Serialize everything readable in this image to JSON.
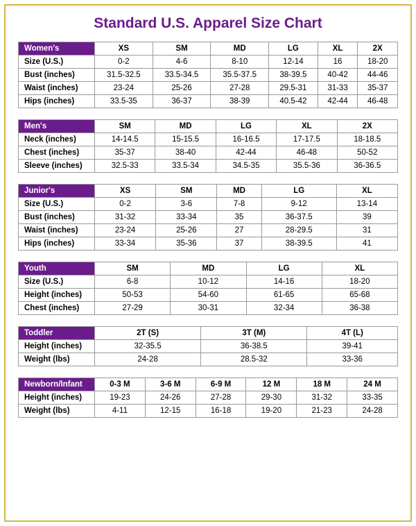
{
  "title": "Standard U.S. Apparel Size Chart",
  "colors": {
    "header_bg": "#6b1c8c",
    "header_text": "#ffffff",
    "border": "#999999",
    "frame": "#d4b740",
    "title": "#6b1c8c"
  },
  "tables": [
    {
      "category": "Women's",
      "sizes": [
        "XS",
        "SM",
        "MD",
        "LG",
        "XL",
        "2X"
      ],
      "rows": [
        {
          "label": "Size (U.S.)",
          "values": [
            "0-2",
            "4-6",
            "8-10",
            "12-14",
            "16",
            "18-20"
          ]
        },
        {
          "label": "Bust (inches)",
          "values": [
            "31.5-32.5",
            "33.5-34.5",
            "35.5-37.5",
            "38-39.5",
            "40-42",
            "44-46"
          ]
        },
        {
          "label": "Waist (inches)",
          "values": [
            "23-24",
            "25-26",
            "27-28",
            "29.5-31",
            "31-33",
            "35-37"
          ]
        },
        {
          "label": "Hips (inches)",
          "values": [
            "33.5-35",
            "36-37",
            "38-39",
            "40.5-42",
            "42-44",
            "46-48"
          ]
        }
      ]
    },
    {
      "category": "Men's",
      "sizes": [
        "SM",
        "MD",
        "LG",
        "XL",
        "2X"
      ],
      "rows": [
        {
          "label": "Neck (inches)",
          "values": [
            "14-14.5",
            "15-15.5",
            "16-16.5",
            "17-17.5",
            "18-18.5"
          ]
        },
        {
          "label": "Chest (inches)",
          "values": [
            "35-37",
            "38-40",
            "42-44",
            "46-48",
            "50-52"
          ]
        },
        {
          "label": "Sleeve (inches)",
          "values": [
            "32.5-33",
            "33.5-34",
            "34.5-35",
            "35.5-36",
            "36-36.5"
          ]
        }
      ]
    },
    {
      "category": "Junior's",
      "sizes": [
        "XS",
        "SM",
        "MD",
        "LG",
        "XL"
      ],
      "rows": [
        {
          "label": "Size (U.S.)",
          "values": [
            "0-2",
            "3-6",
            "7-8",
            "9-12",
            "13-14"
          ]
        },
        {
          "label": "Bust (inches)",
          "values": [
            "31-32",
            "33-34",
            "35",
            "36-37.5",
            "39"
          ]
        },
        {
          "label": "Waist (inches)",
          "values": [
            "23-24",
            "25-26",
            "27",
            "28-29.5",
            "31"
          ]
        },
        {
          "label": "Hips (inches)",
          "values": [
            "33-34",
            "35-36",
            "37",
            "38-39.5",
            "41"
          ]
        }
      ]
    },
    {
      "category": "Youth",
      "sizes": [
        "SM",
        "MD",
        "LG",
        "XL"
      ],
      "rows": [
        {
          "label": "Size (U.S.)",
          "values": [
            "6-8",
            "10-12",
            "14-16",
            "18-20"
          ]
        },
        {
          "label": "Height (inches)",
          "values": [
            "50-53",
            "54-60",
            "61-65",
            "65-68"
          ]
        },
        {
          "label": "Chest (inches)",
          "values": [
            "27-29",
            "30-31",
            "32-34",
            "36-38"
          ]
        }
      ]
    },
    {
      "category": "Toddler",
      "sizes": [
        "2T (S)",
        "3T (M)",
        "4T (L)"
      ],
      "rows": [
        {
          "label": "Height (inches)",
          "values": [
            "32-35.5",
            "36-38.5",
            "39-41"
          ]
        },
        {
          "label": "Weight (lbs)",
          "values": [
            "24-28",
            "28.5-32",
            "33-36"
          ]
        }
      ]
    },
    {
      "category": "Newborn/Infant",
      "sizes": [
        "0-3 M",
        "3-6 M",
        "6-9 M",
        "12 M",
        "18 M",
        "24 M"
      ],
      "rows": [
        {
          "label": "Height (inches)",
          "values": [
            "19-23",
            "24-26",
            "27-28",
            "29-30",
            "31-32",
            "33-35"
          ]
        },
        {
          "label": "Weight (lbs)",
          "values": [
            "4-11",
            "12-15",
            "16-18",
            "19-20",
            "21-23",
            "24-28"
          ]
        }
      ]
    }
  ]
}
